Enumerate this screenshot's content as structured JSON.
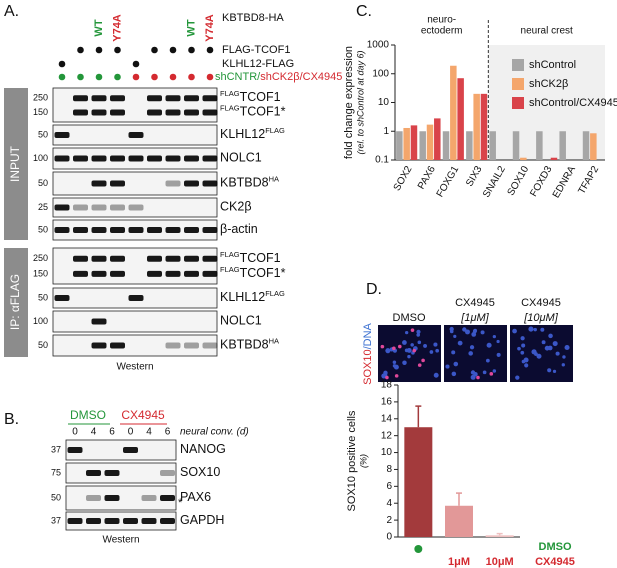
{
  "figure": {
    "panel_a": {
      "letter": "A.",
      "kbtbd8": "KBTBD8-HA",
      "wt": "WT",
      "y74a": "Y74A",
      "flag_tcof1": "FLAG-TCOF1",
      "klhl12_flag": "KLHL12-FLAG",
      "sh_cntr": "shCNTR/",
      "sh_ck2b": "shCK2β/CX4945",
      "input": "INPUT",
      "ip": "IP: αFLAG",
      "footer": "Western",
      "input_blots": [
        {
          "labels": [
            {
              "sup": "FLAG",
              "name": "TCOF1"
            },
            {
              "sup": "FLAG",
              "name": "TCOF1*"
            }
          ],
          "markers": [
            250,
            150
          ]
        },
        {
          "labels": [
            {
              "name": "KLHL12",
              "post": "FLAG"
            }
          ],
          "markers": [
            50
          ]
        },
        {
          "labels": [
            {
              "name": "NOLC1"
            }
          ],
          "markers": [
            100
          ]
        },
        {
          "labels": [
            {
              "name": "KBTBD8",
              "post": "HA"
            }
          ],
          "markers": [
            50
          ]
        },
        {
          "labels": [
            {
              "name": "CK2β"
            }
          ],
          "markers": [
            25
          ]
        },
        {
          "labels": [
            {
              "name": "β-actin"
            }
          ],
          "markers": [
            50
          ]
        }
      ],
      "ip_blots": [
        {
          "labels": [
            {
              "sup": "FLAG",
              "name": "TCOF1"
            },
            {
              "sup": "FLAG",
              "name": "TCOF1*"
            }
          ],
          "markers": [
            250,
            150
          ]
        },
        {
          "labels": [
            {
              "name": "KLHL12",
              "post": "FLAG"
            }
          ],
          "markers": [
            50
          ]
        },
        {
          "labels": [
            {
              "name": "NOLC1"
            }
          ],
          "markers": [
            100
          ]
        },
        {
          "labels": [
            {
              "name": "KBTBD8",
              "post": "HA"
            }
          ],
          "markers": [
            50
          ]
        }
      ]
    },
    "panel_b": {
      "letter": "B.",
      "dmso": "DMSO",
      "cx4945": "CX4945",
      "time_label": "neural conv. (d)",
      "lanes": [
        "0",
        "4",
        "6",
        "0",
        "4",
        "6"
      ],
      "footer": "Western",
      "asterisk": "*",
      "blots": [
        {
          "labels": [
            {
              "name": "NANOG"
            }
          ],
          "markers": [
            37
          ]
        },
        {
          "labels": [
            {
              "name": "SOX10"
            }
          ],
          "markers": [
            75
          ]
        },
        {
          "labels": [
            {
              "name": "PAX6"
            }
          ],
          "markers": [
            50
          ]
        },
        {
          "labels": [
            {
              "name": "GAPDH"
            }
          ],
          "markers": [
            37
          ]
        }
      ]
    },
    "panel_d_images": {
      "letter": "D.",
      "dmso": "DMSO",
      "cx4945": "CX4945",
      "dose_1": "[1μM]",
      "dose_10": "[10μM]",
      "stain_red": "SOX10",
      "stain_blue": "/DNA"
    }
  },
  "chart_data": [
    {
      "type": "bar",
      "panel": "C.",
      "ylabel": "fold change expression",
      "ylabel_note": "(rel. to shControl at day 6)",
      "region_left": [
        "neuro-",
        "ectoderm"
      ],
      "region_right": "neural crest",
      "categories": [
        "SOX2",
        "PAX6",
        "FOXG1",
        "SIX3",
        "SNAIL2",
        "SOX10",
        "FOXD3",
        "EDNRA",
        "TFAP2"
      ],
      "series": [
        {
          "name": "shControl",
          "color": "#a6a6a6",
          "values": [
            1,
            1,
            1,
            1,
            1,
            1,
            1,
            1,
            1
          ]
        },
        {
          "name": "shCK2β",
          "color": "#f4a66c",
          "values": [
            1.3,
            1.7,
            190,
            20,
            null,
            0.12,
            null,
            null,
            0.85
          ]
        },
        {
          "name": "shControl/CX4945",
          "color": "#d9434a",
          "values": [
            1.6,
            2.8,
            70,
            20,
            null,
            null,
            0.12,
            null,
            null
          ]
        }
      ],
      "log": true,
      "ylim": [
        0.1,
        1000
      ],
      "yticks": [
        0.1,
        1,
        10,
        100,
        1000
      ],
      "legend": "upper-right"
    },
    {
      "type": "bar",
      "ylabel": "SOX10 positive cells",
      "ylabel_unit": "(%)",
      "categories": [
        null,
        "1μM",
        "10μM"
      ],
      "values": [
        13,
        3.7,
        0.2
      ],
      "errors": [
        2.5,
        1.5,
        0.2
      ],
      "colors": [
        "#a33a3c",
        "#e29898",
        "#eec0c0"
      ],
      "ylim": [
        0,
        18
      ],
      "yticks": [
        0,
        2,
        4,
        6,
        8,
        10,
        12,
        14,
        16,
        18
      ],
      "annotations": [
        "DMSO",
        "CX4945"
      ]
    }
  ]
}
